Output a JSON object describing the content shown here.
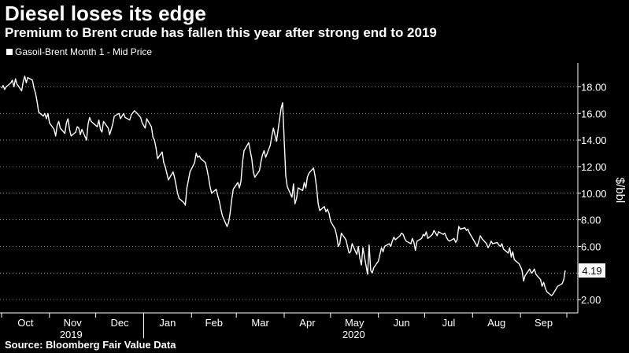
{
  "header": {
    "title": "Diesel loses its edge",
    "subtitle": "Premium to Brent crude has fallen this year after strong end to 2019"
  },
  "footer": {
    "source": "Source: Bloomberg Fair Value Data"
  },
  "colors": {
    "background": "#000000",
    "line": "#ffffff",
    "text": "#ffffff"
  },
  "chart_data": {
    "type": "line",
    "ylabel": "$/bbl",
    "ylim": [
      1.0,
      19.8
    ],
    "yticks": [
      "2.00",
      "4.00",
      "6.00",
      "8.00",
      "10.00",
      "12.00",
      "14.00",
      "16.00",
      "18.00"
    ],
    "months": [
      "Oct",
      "Nov",
      "Dec",
      "Jan",
      "Feb",
      "Mar",
      "Apr",
      "May",
      "Jun",
      "Jul",
      "Aug",
      "Sep"
    ],
    "years": [
      "2019",
      "2020"
    ],
    "legend": {
      "label": "Gasoil-Brent Month 1 - Mid Price",
      "placement": "top-left"
    },
    "last_value_label": "4.19",
    "series": [
      {
        "name": "Gasoil-Brent Month 1 - Mid Price",
        "points": [
          [
            "2019-10-01",
            17.9
          ],
          [
            "2019-10-02",
            18.1
          ],
          [
            "2019-10-03",
            17.8
          ],
          [
            "2019-10-04",
            18.0
          ],
          [
            "2019-10-07",
            18.3
          ],
          [
            "2019-10-08",
            18.5
          ],
          [
            "2019-10-09",
            18.0
          ],
          [
            "2019-10-10",
            18.6
          ],
          [
            "2019-10-11",
            18.2
          ],
          [
            "2019-10-14",
            17.7
          ],
          [
            "2019-10-15",
            18.4
          ],
          [
            "2019-10-16",
            18.8
          ],
          [
            "2019-10-17",
            18.3
          ],
          [
            "2019-10-18",
            18.7
          ],
          [
            "2019-10-21",
            18.5
          ],
          [
            "2019-10-22",
            17.9
          ],
          [
            "2019-10-23",
            17.5
          ],
          [
            "2019-10-24",
            16.9
          ],
          [
            "2019-10-25",
            16.1
          ],
          [
            "2019-10-28",
            15.8
          ],
          [
            "2019-10-29",
            16.0
          ],
          [
            "2019-10-30",
            15.6
          ],
          [
            "2019-10-31",
            16.0
          ],
          [
            "2019-11-01",
            15.3
          ],
          [
            "2019-11-04",
            14.8
          ],
          [
            "2019-11-05",
            14.3
          ],
          [
            "2019-11-06",
            15.1
          ],
          [
            "2019-11-07",
            15.4
          ],
          [
            "2019-11-08",
            14.9
          ],
          [
            "2019-11-11",
            14.5
          ],
          [
            "2019-11-12",
            15.3
          ],
          [
            "2019-11-13",
            15.6
          ],
          [
            "2019-11-14",
            14.8
          ],
          [
            "2019-11-15",
            14.3
          ],
          [
            "2019-11-18",
            14.6
          ],
          [
            "2019-11-19",
            15.0
          ],
          [
            "2019-11-20",
            14.9
          ],
          [
            "2019-11-21",
            14.4
          ],
          [
            "2019-11-22",
            14.8
          ],
          [
            "2019-11-25",
            14.0
          ],
          [
            "2019-11-26",
            15.2
          ],
          [
            "2019-11-27",
            15.7
          ],
          [
            "2019-11-28",
            15.4
          ],
          [
            "2019-11-29",
            15.3
          ],
          [
            "2019-12-02",
            15.0
          ],
          [
            "2019-12-03",
            15.5
          ],
          [
            "2019-12-04",
            14.8
          ],
          [
            "2019-12-05",
            14.6
          ],
          [
            "2019-12-06",
            15.4
          ],
          [
            "2019-12-09",
            14.9
          ],
          [
            "2019-12-10",
            14.4
          ],
          [
            "2019-12-11",
            14.8
          ],
          [
            "2019-12-12",
            15.2
          ],
          [
            "2019-12-13",
            15.8
          ],
          [
            "2019-12-16",
            16.0
          ],
          [
            "2019-12-17",
            15.6
          ],
          [
            "2019-12-18",
            15.8
          ],
          [
            "2019-12-19",
            16.0
          ],
          [
            "2019-12-20",
            15.7
          ],
          [
            "2019-12-23",
            15.5
          ],
          [
            "2019-12-24",
            15.9
          ],
          [
            "2019-12-26",
            16.2
          ],
          [
            "2019-12-27",
            16.1
          ],
          [
            "2019-12-30",
            15.7
          ],
          [
            "2019-12-31",
            15.3
          ],
          [
            "2020-01-02",
            14.9
          ],
          [
            "2020-01-03",
            15.6
          ],
          [
            "2020-01-06",
            15.0
          ],
          [
            "2020-01-07",
            14.2
          ],
          [
            "2020-01-08",
            14.0
          ],
          [
            "2020-01-09",
            13.4
          ],
          [
            "2020-01-10",
            12.6
          ],
          [
            "2020-01-13",
            13.1
          ],
          [
            "2020-01-14",
            12.3
          ],
          [
            "2020-01-15",
            12.0
          ],
          [
            "2020-01-16",
            11.5
          ],
          [
            "2020-01-17",
            11.0
          ],
          [
            "2020-01-20",
            11.6
          ],
          [
            "2020-01-21",
            11.2
          ],
          [
            "2020-01-22",
            10.6
          ],
          [
            "2020-01-23",
            10.0
          ],
          [
            "2020-01-24",
            9.6
          ],
          [
            "2020-01-27",
            9.3
          ],
          [
            "2020-01-28",
            9.1
          ],
          [
            "2020-01-29",
            10.4
          ],
          [
            "2020-01-30",
            11.0
          ],
          [
            "2020-01-31",
            11.6
          ],
          [
            "2020-02-03",
            12.3
          ],
          [
            "2020-02-04",
            13.0
          ],
          [
            "2020-02-05",
            12.7
          ],
          [
            "2020-02-06",
            12.8
          ],
          [
            "2020-02-07",
            12.6
          ],
          [
            "2020-02-10",
            12.3
          ],
          [
            "2020-02-11",
            11.8
          ],
          [
            "2020-02-12",
            11.2
          ],
          [
            "2020-02-13",
            10.5
          ],
          [
            "2020-02-14",
            10.0
          ],
          [
            "2020-02-17",
            10.3
          ],
          [
            "2020-02-18",
            9.8
          ],
          [
            "2020-02-19",
            9.4
          ],
          [
            "2020-02-20",
            8.8
          ],
          [
            "2020-02-21",
            8.3
          ],
          [
            "2020-02-24",
            7.5
          ],
          [
            "2020-02-25",
            7.8
          ],
          [
            "2020-02-26",
            8.5
          ],
          [
            "2020-02-27",
            9.5
          ],
          [
            "2020-02-28",
            10.3
          ],
          [
            "2020-03-02",
            10.8
          ],
          [
            "2020-03-03",
            10.4
          ],
          [
            "2020-03-04",
            10.9
          ],
          [
            "2020-03-05",
            12.3
          ],
          [
            "2020-03-06",
            13.2
          ],
          [
            "2020-03-09",
            13.8
          ],
          [
            "2020-03-10",
            13.2
          ],
          [
            "2020-03-11",
            12.6
          ],
          [
            "2020-03-12",
            11.6
          ],
          [
            "2020-03-13",
            11.2
          ],
          [
            "2020-03-16",
            11.7
          ],
          [
            "2020-03-17",
            12.4
          ],
          [
            "2020-03-18",
            12.9
          ],
          [
            "2020-03-19",
            13.2
          ],
          [
            "2020-03-20",
            12.7
          ],
          [
            "2020-03-23",
            13.6
          ],
          [
            "2020-03-24",
            14.3
          ],
          [
            "2020-03-25",
            14.9
          ],
          [
            "2020-03-26",
            14.4
          ],
          [
            "2020-03-27",
            13.9
          ],
          [
            "2020-03-30",
            16.4
          ],
          [
            "2020-03-31",
            16.8
          ],
          [
            "2020-04-01",
            14.0
          ],
          [
            "2020-04-02",
            11.3
          ],
          [
            "2020-04-03",
            10.5
          ],
          [
            "2020-04-06",
            9.7
          ],
          [
            "2020-04-07",
            10.7
          ],
          [
            "2020-04-08",
            9.2
          ],
          [
            "2020-04-09",
            9.6
          ],
          [
            "2020-04-10",
            10.4
          ],
          [
            "2020-04-13",
            10.2
          ],
          [
            "2020-04-14",
            10.8
          ],
          [
            "2020-04-15",
            10.4
          ],
          [
            "2020-04-16",
            11.2
          ],
          [
            "2020-04-17",
            11.5
          ],
          [
            "2020-04-20",
            11.9
          ],
          [
            "2020-04-21",
            11.3
          ],
          [
            "2020-04-22",
            10.4
          ],
          [
            "2020-04-23",
            9.2
          ],
          [
            "2020-04-24",
            8.7
          ],
          [
            "2020-04-27",
            9.0
          ],
          [
            "2020-04-28",
            8.6
          ],
          [
            "2020-04-29",
            8.8
          ],
          [
            "2020-04-30",
            8.5
          ],
          [
            "2020-05-01",
            7.9
          ],
          [
            "2020-05-04",
            7.3
          ],
          [
            "2020-05-05",
            6.8
          ],
          [
            "2020-05-06",
            6.0
          ],
          [
            "2020-05-07",
            6.2
          ],
          [
            "2020-05-08",
            7.0
          ],
          [
            "2020-05-11",
            6.5
          ],
          [
            "2020-05-12",
            6.0
          ],
          [
            "2020-05-13",
            5.5
          ],
          [
            "2020-05-14",
            5.6
          ],
          [
            "2020-05-15",
            6.2
          ],
          [
            "2020-05-18",
            5.4
          ],
          [
            "2020-05-19",
            6.0
          ],
          [
            "2020-05-20",
            5.1
          ],
          [
            "2020-05-21",
            4.6
          ],
          [
            "2020-05-22",
            5.9
          ],
          [
            "2020-05-25",
            3.9
          ],
          [
            "2020-05-26",
            6.1
          ],
          [
            "2020-05-27",
            4.2
          ],
          [
            "2020-05-28",
            4.0
          ],
          [
            "2020-05-29",
            4.4
          ],
          [
            "2020-06-01",
            4.9
          ],
          [
            "2020-06-02",
            5.4
          ],
          [
            "2020-06-03",
            5.9
          ],
          [
            "2020-06-04",
            5.6
          ],
          [
            "2020-06-05",
            6.0
          ],
          [
            "2020-06-08",
            6.2
          ],
          [
            "2020-06-09",
            6.0
          ],
          [
            "2020-06-10",
            6.4
          ],
          [
            "2020-06-11",
            6.7
          ],
          [
            "2020-06-12",
            6.5
          ],
          [
            "2020-06-15",
            6.8
          ],
          [
            "2020-06-16",
            7.0
          ],
          [
            "2020-06-17",
            6.9
          ],
          [
            "2020-06-18",
            6.6
          ],
          [
            "2020-06-19",
            6.4
          ],
          [
            "2020-06-22",
            6.2
          ],
          [
            "2020-06-23",
            6.6
          ],
          [
            "2020-06-24",
            6.3
          ],
          [
            "2020-06-25",
            5.7
          ],
          [
            "2020-06-26",
            6.4
          ],
          [
            "2020-06-29",
            6.6
          ],
          [
            "2020-06-30",
            6.9
          ],
          [
            "2020-07-01",
            6.8
          ],
          [
            "2020-07-02",
            7.1
          ],
          [
            "2020-07-03",
            6.6
          ],
          [
            "2020-07-06",
            6.9
          ],
          [
            "2020-07-07",
            7.2
          ],
          [
            "2020-07-08",
            7.0
          ],
          [
            "2020-07-09",
            6.8
          ],
          [
            "2020-07-10",
            7.1
          ],
          [
            "2020-07-13",
            6.9
          ],
          [
            "2020-07-14",
            7.0
          ],
          [
            "2020-07-15",
            6.7
          ],
          [
            "2020-07-16",
            6.5
          ],
          [
            "2020-07-17",
            6.4
          ],
          [
            "2020-07-20",
            6.6
          ],
          [
            "2020-07-21",
            6.3
          ],
          [
            "2020-07-22",
            6.5
          ],
          [
            "2020-07-23",
            7.5
          ],
          [
            "2020-07-24",
            7.3
          ],
          [
            "2020-07-27",
            7.4
          ],
          [
            "2020-07-28",
            7.2
          ],
          [
            "2020-07-29",
            7.3
          ],
          [
            "2020-07-30",
            7.0
          ],
          [
            "2020-07-31",
            6.8
          ],
          [
            "2020-08-03",
            6.2
          ],
          [
            "2020-08-04",
            6.0
          ],
          [
            "2020-08-05",
            6.4
          ],
          [
            "2020-08-06",
            6.8
          ],
          [
            "2020-08-07",
            6.6
          ],
          [
            "2020-08-10",
            6.2
          ],
          [
            "2020-08-11",
            5.9
          ],
          [
            "2020-08-12",
            6.1
          ],
          [
            "2020-08-13",
            6.4
          ],
          [
            "2020-08-14",
            6.2
          ],
          [
            "2020-08-17",
            6.3
          ],
          [
            "2020-08-18",
            6.1
          ],
          [
            "2020-08-19",
            6.0
          ],
          [
            "2020-08-20",
            6.2
          ],
          [
            "2020-08-21",
            5.8
          ],
          [
            "2020-08-24",
            5.5
          ],
          [
            "2020-08-25",
            5.9
          ],
          [
            "2020-08-26",
            5.2
          ],
          [
            "2020-08-27",
            5.6
          ],
          [
            "2020-08-28",
            5.0
          ],
          [
            "2020-08-31",
            4.7
          ],
          [
            "2020-09-01",
            4.5
          ],
          [
            "2020-09-02",
            4.2
          ],
          [
            "2020-09-03",
            3.4
          ],
          [
            "2020-09-04",
            3.8
          ],
          [
            "2020-09-07",
            4.3
          ],
          [
            "2020-09-08",
            4.0
          ],
          [
            "2020-09-09",
            4.1
          ],
          [
            "2020-09-10",
            4.3
          ],
          [
            "2020-09-11",
            3.9
          ],
          [
            "2020-09-14",
            3.5
          ],
          [
            "2020-09-15",
            3.0
          ],
          [
            "2020-09-16",
            3.3
          ],
          [
            "2020-09-17",
            2.9
          ],
          [
            "2020-09-18",
            2.6
          ],
          [
            "2020-09-21",
            2.3
          ],
          [
            "2020-09-22",
            2.4
          ],
          [
            "2020-09-23",
            2.6
          ],
          [
            "2020-09-24",
            2.8
          ],
          [
            "2020-09-25",
            3.0
          ],
          [
            "2020-09-28",
            3.2
          ],
          [
            "2020-09-29",
            3.5
          ],
          [
            "2020-09-30",
            4.19
          ]
        ]
      }
    ]
  }
}
